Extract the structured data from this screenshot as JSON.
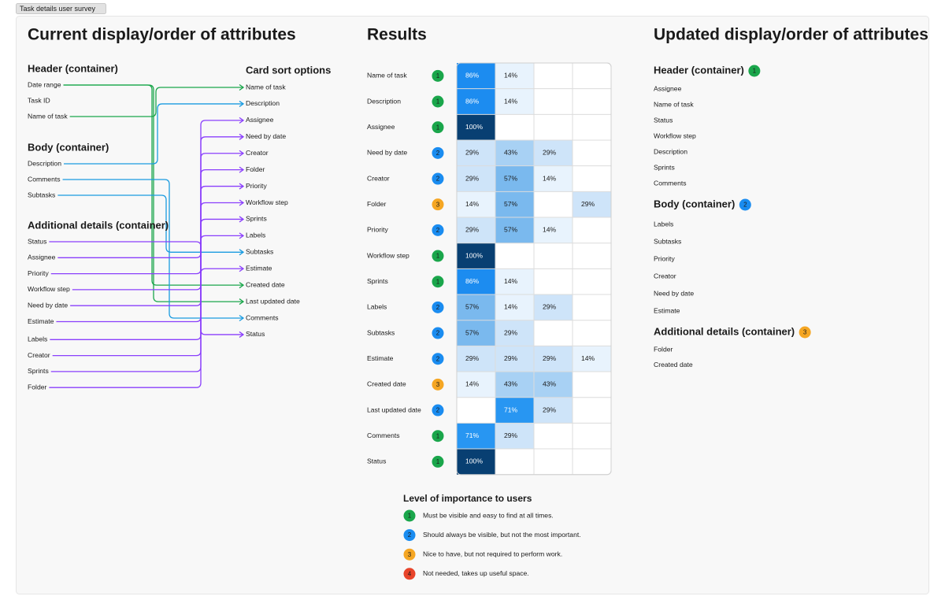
{
  "tab": "Task details user survey",
  "current": {
    "title": "Current display/order of attributes",
    "groups": [
      {
        "heading": "Header (container)",
        "items": [
          "Date range",
          "Task ID",
          "Name of task"
        ]
      },
      {
        "heading": "Body (container)",
        "items": [
          "Description",
          "Comments",
          "Subtasks"
        ]
      },
      {
        "heading": "Additional details (container)",
        "items": [
          "Status",
          "Assignee",
          "Priority",
          "Workflow step",
          "Need by date",
          "Estimate",
          "Labels",
          "Creator",
          "Sprints",
          "Folder"
        ]
      }
    ],
    "card_sort": {
      "heading": "Card sort options",
      "items": [
        "Name of task",
        "Description",
        "Assignee",
        "Need by date",
        "Creator",
        "Folder",
        "Priority",
        "Workflow step",
        "Sprints",
        "Labels",
        "Subtasks",
        "Estimate",
        "Created date",
        "Last updated date",
        "Comments",
        "Status"
      ]
    }
  },
  "results": {
    "title": "Results",
    "rows": [
      {
        "name": "Name of task",
        "rank": 1,
        "cells": [
          "86%",
          "14%",
          null,
          null
        ]
      },
      {
        "name": "Description",
        "rank": 1,
        "cells": [
          "86%",
          "14%",
          null,
          null
        ]
      },
      {
        "name": "Assignee",
        "rank": 1,
        "cells": [
          "100%",
          null,
          null,
          null
        ]
      },
      {
        "name": "Need by date",
        "rank": 2,
        "cells": [
          "29%",
          "43%",
          "29%",
          null
        ]
      },
      {
        "name": "Creator",
        "rank": 2,
        "cells": [
          "29%",
          "57%",
          "14%",
          null
        ]
      },
      {
        "name": "Folder",
        "rank": 3,
        "cells": [
          "14%",
          "57%",
          null,
          "29%"
        ]
      },
      {
        "name": "Priority",
        "rank": 2,
        "cells": [
          "29%",
          "57%",
          "14%",
          null
        ]
      },
      {
        "name": "Workflow step",
        "rank": 1,
        "cells": [
          "100%",
          null,
          null,
          null
        ]
      },
      {
        "name": "Sprints",
        "rank": 1,
        "cells": [
          "86%",
          "14%",
          null,
          null
        ]
      },
      {
        "name": "Labels",
        "rank": 2,
        "cells": [
          "57%",
          "14%",
          "29%",
          null
        ]
      },
      {
        "name": "Subtasks",
        "rank": 2,
        "cells": [
          "57%",
          "29%",
          null,
          null
        ]
      },
      {
        "name": "Estimate",
        "rank": 2,
        "cells": [
          "29%",
          "29%",
          "29%",
          "14%"
        ]
      },
      {
        "name": "Created date",
        "rank": 3,
        "cells": [
          "14%",
          "43%",
          "43%",
          null
        ]
      },
      {
        "name": "Last updated date",
        "rank": 2,
        "cells": [
          null,
          "71%",
          "29%",
          null
        ]
      },
      {
        "name": "Comments",
        "rank": 1,
        "cells": [
          "71%",
          "29%",
          null,
          null
        ]
      },
      {
        "name": "Status",
        "rank": 1,
        "cells": [
          "100%",
          null,
          null,
          null
        ]
      }
    ]
  },
  "legend": {
    "heading": "Level of importance to users",
    "items": [
      {
        "rank": 1,
        "text": "Must be visible and easy to find at all times."
      },
      {
        "rank": 2,
        "text": "Should always be visible, but not the most important."
      },
      {
        "rank": 3,
        "text": "Nice to have, but not required to perform work."
      },
      {
        "rank": 4,
        "text": "Not needed, takes up useful space."
      }
    ]
  },
  "updated": {
    "title": "Updated display/order of attributes",
    "groups": [
      {
        "heading": "Header (container)",
        "rank": 1,
        "items": [
          "Assignee",
          "Name of task",
          "Status",
          "Workflow step",
          "Description",
          "Sprints",
          "Comments"
        ]
      },
      {
        "heading": "Body (container)",
        "rank": 2,
        "items": [
          "Labels",
          "Subtasks",
          "Priority",
          "Creator",
          "Need by date",
          "Estimate"
        ]
      },
      {
        "heading": "Additional details (container)",
        "rank": 3,
        "items": [
          "Folder",
          "Created date"
        ]
      }
    ]
  }
}
